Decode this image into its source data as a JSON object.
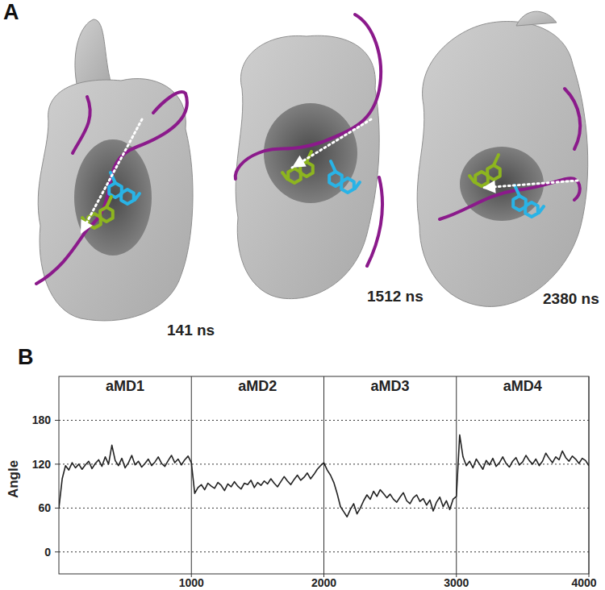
{
  "panel_a": {
    "label": "A",
    "snapshots": [
      {
        "label": "141 ns"
      },
      {
        "label": "1512 ns"
      },
      {
        "label": "2380 ns"
      }
    ]
  },
  "panel_b": {
    "label": "B"
  },
  "chart_data": {
    "type": "line",
    "y_label": "Angle",
    "annotations": [
      {
        "text": "aMD1",
        "x": 500
      },
      {
        "text": "aMD2",
        "x": 1500
      },
      {
        "text": "aMD3",
        "x": 2500
      },
      {
        "text": "aMD4",
        "x": 3500
      }
    ],
    "x": [
      0,
      25,
      50,
      75,
      100,
      125,
      150,
      175,
      200,
      225,
      250,
      275,
      300,
      325,
      350,
      375,
      400,
      425,
      450,
      475,
      500,
      525,
      550,
      575,
      600,
      625,
      650,
      675,
      700,
      725,
      750,
      775,
      800,
      825,
      850,
      875,
      900,
      925,
      950,
      975,
      1000,
      1025,
      1050,
      1075,
      1100,
      1125,
      1150,
      1175,
      1200,
      1225,
      1250,
      1275,
      1300,
      1325,
      1350,
      1375,
      1400,
      1425,
      1450,
      1475,
      1500,
      1525,
      1550,
      1575,
      1600,
      1625,
      1650,
      1675,
      1700,
      1725,
      1750,
      1775,
      1800,
      1825,
      1850,
      1875,
      1900,
      1925,
      1950,
      1975,
      2000,
      2025,
      2050,
      2075,
      2100,
      2125,
      2150,
      2175,
      2200,
      2225,
      2250,
      2275,
      2300,
      2325,
      2350,
      2375,
      2400,
      2425,
      2450,
      2475,
      2500,
      2525,
      2550,
      2575,
      2600,
      2625,
      2650,
      2675,
      2700,
      2725,
      2750,
      2775,
      2800,
      2825,
      2850,
      2875,
      2900,
      2925,
      2950,
      2975,
      3000,
      3025,
      3050,
      3075,
      3100,
      3125,
      3150,
      3175,
      3200,
      3225,
      3250,
      3275,
      3300,
      3325,
      3350,
      3375,
      3400,
      3425,
      3450,
      3475,
      3500,
      3525,
      3550,
      3575,
      3600,
      3625,
      3650,
      3675,
      3700,
      3725,
      3750,
      3775,
      3800,
      3825,
      3850,
      3875,
      3900,
      3925,
      3950,
      3975,
      4000
    ],
    "values": [
      60,
      100,
      118,
      112,
      122,
      115,
      120,
      113,
      119,
      124,
      114,
      121,
      126,
      117,
      130,
      120,
      146,
      125,
      118,
      128,
      115,
      122,
      132,
      119,
      124,
      116,
      121,
      127,
      118,
      123,
      130,
      121,
      117,
      125,
      132,
      122,
      127,
      119,
      126,
      131,
      122,
      80,
      88,
      92,
      85,
      94,
      90,
      87,
      95,
      91,
      84,
      93,
      89,
      96,
      90,
      86,
      94,
      92,
      98,
      88,
      95,
      91,
      97,
      93,
      100,
      94,
      89,
      96,
      103,
      97,
      92,
      99,
      105,
      98,
      102,
      108,
      100,
      106,
      113,
      118,
      122,
      112,
      105,
      95,
      80,
      62,
      55,
      48,
      58,
      66,
      52,
      60,
      70,
      78,
      72,
      83,
      76,
      85,
      80,
      74,
      79,
      72,
      68,
      75,
      81,
      70,
      66,
      74,
      78,
      69,
      73,
      64,
      71,
      56,
      68,
      75,
      62,
      70,
      58,
      72,
      76,
      160,
      130,
      118,
      124,
      115,
      127,
      120,
      113,
      125,
      119,
      128,
      117,
      122,
      130,
      121,
      116,
      124,
      129,
      119,
      123,
      132,
      125,
      120,
      127,
      118,
      124,
      135,
      128,
      122,
      130,
      126,
      138,
      129,
      124,
      131,
      127,
      121,
      128,
      125,
      118
    ],
    "color": "#222222",
    "xlim": [
      0,
      4000
    ],
    "ylim": [
      -30,
      240
    ],
    "xticks": [
      1000,
      2000,
      3000,
      4000
    ],
    "yticks": [
      0,
      60,
      120,
      180
    ],
    "grid": true
  }
}
